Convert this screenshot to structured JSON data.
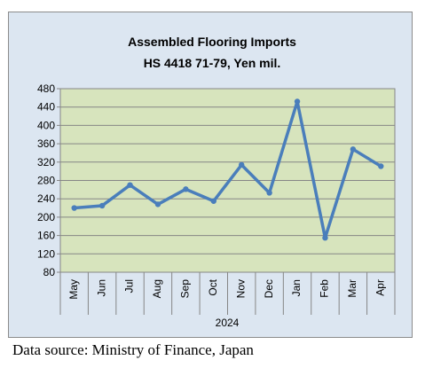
{
  "chart_data": {
    "type": "line",
    "title": [
      "Assembled Flooring Imports",
      "HS 4418 71-79, Yen mil."
    ],
    "xlabel": "2024",
    "ylabel": "",
    "categories": [
      "May",
      "Jun",
      "Jul",
      "Aug",
      "Sep",
      "Oct",
      "Nov",
      "Dec",
      "Jan",
      "Feb",
      "Mar",
      "Apr"
    ],
    "series": [
      {
        "values": [
          220,
          225,
          270,
          228,
          261,
          235,
          314,
          253,
          452,
          155,
          348,
          311
        ]
      }
    ],
    "ylim": [
      80,
      480
    ],
    "yticks": [
      80,
      120,
      160,
      200,
      240,
      280,
      320,
      360,
      400,
      440,
      480
    ],
    "grid": "horizontal",
    "legend": "none",
    "colors": {
      "line": "#4a7ebb",
      "plot_area": "#d7e4bd",
      "chart_area": "#dce6f1",
      "gridline": "#868686"
    }
  },
  "source_note": "Data source: Ministry of Finance, Japan"
}
